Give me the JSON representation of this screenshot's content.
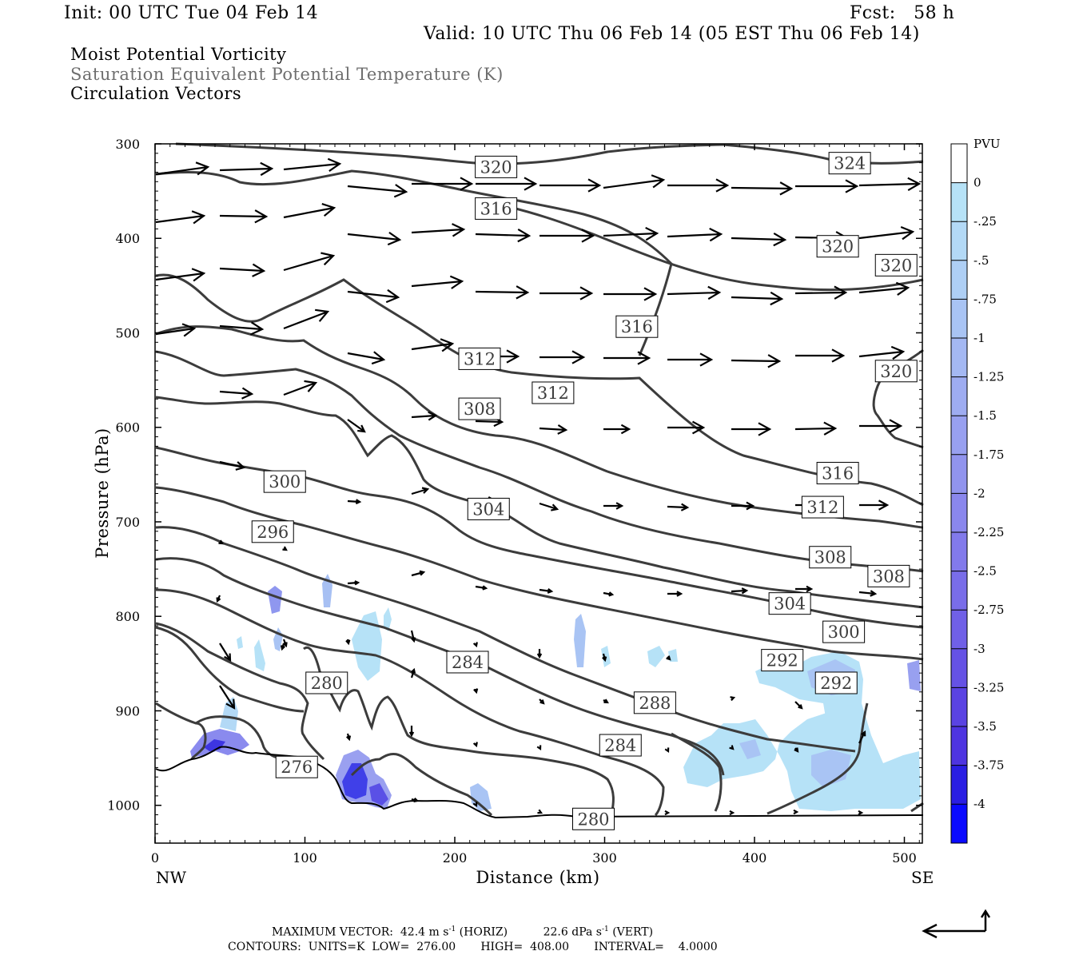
{
  "header": {
    "init": "Init: 00 UTC Tue 04 Feb 14",
    "fcst": "Fcst:   58 h",
    "valid": "Valid: 10 UTC Thu 06 Feb 14 (05 EST Thu 06 Feb 14)"
  },
  "titles": {
    "line1": "Moist Potential Vorticity",
    "line2": "Saturation Equivalent Potential Temperature (K)",
    "line3": "Circulation Vectors",
    "line2_color": "#6e6e6e"
  },
  "chart_data": {
    "type": "cross-section",
    "xlabel": "Distance (km)",
    "ylabel": "Pressure (hPa)",
    "xlim": [
      0,
      512
    ],
    "ylim": [
      1040,
      300
    ],
    "x_ticks": [
      "0",
      "100",
      "200",
      "300",
      "400",
      "500"
    ],
    "y_ticks": [
      "300",
      "400",
      "500",
      "600",
      "700",
      "800",
      "900",
      "1000"
    ],
    "x_end_labels": {
      "left": "NW",
      "right": "SE"
    },
    "contour_labels": [
      {
        "text": "320",
        "x": 227,
        "p": 324
      },
      {
        "text": "324",
        "x": 463,
        "p": 320
      },
      {
        "text": "316",
        "x": 227,
        "p": 368
      },
      {
        "text": "320",
        "x": 455,
        "p": 408
      },
      {
        "text": "320",
        "x": 494,
        "p": 428
      },
      {
        "text": "316",
        "x": 321,
        "p": 493
      },
      {
        "text": "312",
        "x": 216,
        "p": 527
      },
      {
        "text": "320",
        "x": 494,
        "p": 540
      },
      {
        "text": "312",
        "x": 265,
        "p": 563
      },
      {
        "text": "308",
        "x": 216,
        "p": 580
      },
      {
        "text": "316",
        "x": 455,
        "p": 648
      },
      {
        "text": "300",
        "x": 86,
        "p": 657
      },
      {
        "text": "312",
        "x": 445,
        "p": 684
      },
      {
        "text": "304",
        "x": 222,
        "p": 686
      },
      {
        "text": "296",
        "x": 78,
        "p": 710
      },
      {
        "text": "308",
        "x": 450,
        "p": 737
      },
      {
        "text": "308",
        "x": 489,
        "p": 757
      },
      {
        "text": "304",
        "x": 423,
        "p": 786
      },
      {
        "text": "300",
        "x": 459,
        "p": 816
      },
      {
        "text": "292",
        "x": 418,
        "p": 846
      },
      {
        "text": "284",
        "x": 208,
        "p": 848
      },
      {
        "text": "292",
        "x": 454,
        "p": 870
      },
      {
        "text": "280",
        "x": 114,
        "p": 870
      },
      {
        "text": "288",
        "x": 333,
        "p": 891
      },
      {
        "text": "284",
        "x": 310,
        "p": 936
      },
      {
        "text": "276",
        "x": 94,
        "p": 959
      },
      {
        "text": "280",
        "x": 292,
        "p": 1014
      }
    ],
    "contour_range": {
      "low": 276,
      "high": 408,
      "interval": 4
    },
    "colorbar": {
      "units": "PVU",
      "labels": [
        "0",
        "-.25",
        "-.5",
        "-.75",
        "-1",
        "-1.25",
        "-1.5",
        "-1.75",
        "-2",
        "-2.25",
        "-2.5",
        "-2.75",
        "-3",
        "-3.25",
        "-3.5",
        "-3.75",
        "-4"
      ],
      "colors": [
        "#ffffff",
        "#b6e2f7",
        "#b3d9f6",
        "#aecff5",
        "#a9c4f4",
        "#a4b8f3",
        "#9eacf1",
        "#98a0f0",
        "#9194ee",
        "#8a87ed",
        "#827aeb",
        "#796de9",
        "#7060e7",
        "#6552e5",
        "#5a43e2",
        "#4e34e0",
        "#2a1ee3",
        "#0a0aff"
      ]
    }
  },
  "footer": {
    "max_vector_label": "MAXIMUM VECTOR:",
    "horiz_value": "42.4 m s",
    "horiz_exp": "-1",
    "horiz_tag": "(HORIZ)",
    "vert_value": "22.6 dPa s",
    "vert_exp": "-1",
    "vert_tag": "(VERT)",
    "contours_line": "CONTOURS:  UNITS=K  LOW=  276.00       HIGH=  408.00       INTERVAL=    4.0000"
  }
}
